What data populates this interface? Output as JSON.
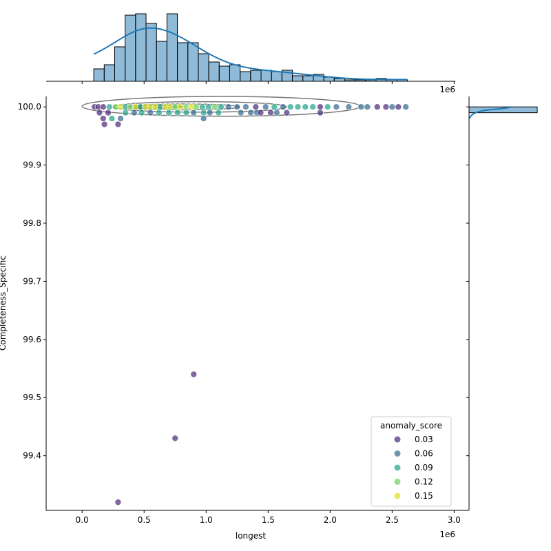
{
  "chart_data": {
    "type": "scatter",
    "xlabel": "longest",
    "ylabel": "Completeness_Specific",
    "x_offset_label": "1e6",
    "top_offset_label": "1e6",
    "xlim": [
      -0.29,
      3.12
    ],
    "ylim": [
      99.306,
      100.018
    ],
    "xticks": [
      0.0,
      0.5,
      1.0,
      1.5,
      2.0,
      2.5,
      3.0
    ],
    "xtick_labels": [
      "0.0",
      "0.5",
      "1.0",
      "1.5",
      "2.0",
      "2.5",
      "3.0"
    ],
    "yticks": [
      99.4,
      99.5,
      99.6,
      99.7,
      99.8,
      99.9,
      100.0
    ],
    "ytick_labels": [
      "99.4",
      "99.5",
      "99.6",
      "99.7",
      "99.8",
      "99.9",
      "100.0"
    ],
    "grid": false,
    "legend": {
      "title": "anomaly_score",
      "placement": "bottom-right",
      "entries": [
        {
          "label": "0.03",
          "color": "#482878"
        },
        {
          "label": "0.06",
          "color": "#31688e"
        },
        {
          "label": "0.09",
          "color": "#1fa187"
        },
        {
          "label": "0.12",
          "color": "#6ece58"
        },
        {
          "label": "0.15",
          "color": "#d8e219"
        }
      ]
    },
    "points": [
      [
        0.1,
        100.0,
        0.02
      ],
      [
        0.13,
        100.0,
        0.01
      ],
      [
        0.17,
        100.0,
        0.04
      ],
      [
        0.22,
        100.0,
        0.09
      ],
      [
        0.27,
        100.0,
        0.12
      ],
      [
        0.31,
        100.0,
        0.14
      ],
      [
        0.35,
        100.0,
        0.08
      ],
      [
        0.39,
        100.0,
        0.12
      ],
      [
        0.43,
        100.0,
        0.15
      ],
      [
        0.47,
        100.0,
        0.09
      ],
      [
        0.51,
        100.0,
        0.15
      ],
      [
        0.55,
        100.0,
        0.16
      ],
      [
        0.59,
        100.0,
        0.14
      ],
      [
        0.63,
        100.0,
        0.08
      ],
      [
        0.67,
        100.0,
        0.15
      ],
      [
        0.71,
        100.0,
        0.14
      ],
      [
        0.75,
        100.0,
        0.12
      ],
      [
        0.79,
        100.0,
        0.15
      ],
      [
        0.84,
        100.0,
        0.13
      ],
      [
        0.88,
        100.0,
        0.15
      ],
      [
        0.92,
        100.0,
        0.12
      ],
      [
        0.97,
        100.0,
        0.1
      ],
      [
        1.02,
        100.0,
        0.09
      ],
      [
        1.07,
        100.0,
        0.12
      ],
      [
        1.12,
        100.0,
        0.09
      ],
      [
        1.18,
        100.0,
        0.06
      ],
      [
        1.25,
        100.0,
        0.05
      ],
      [
        1.32,
        100.0,
        0.06
      ],
      [
        1.4,
        100.0,
        0.04
      ],
      [
        1.48,
        100.0,
        0.05
      ],
      [
        1.55,
        100.0,
        0.08
      ],
      [
        1.62,
        100.0,
        0.07
      ],
      [
        1.68,
        100.0,
        0.09
      ],
      [
        1.74,
        100.0,
        0.1
      ],
      [
        1.8,
        100.0,
        0.09
      ],
      [
        1.86,
        100.0,
        0.1
      ],
      [
        1.92,
        100.0,
        0.02
      ],
      [
        1.98,
        100.0,
        0.08
      ],
      [
        2.05,
        100.0,
        0.07
      ],
      [
        2.15,
        100.0,
        0.06
      ],
      [
        2.25,
        100.0,
        0.07
      ],
      [
        2.3,
        100.0,
        0.06
      ],
      [
        2.38,
        100.0,
        0.03
      ],
      [
        2.45,
        100.0,
        0.04
      ],
      [
        2.5,
        100.0,
        0.05
      ],
      [
        2.55,
        100.0,
        0.03
      ],
      [
        2.61,
        100.0,
        0.05
      ],
      [
        0.14,
        99.99,
        0.04
      ],
      [
        0.21,
        99.99,
        0.03
      ],
      [
        0.35,
        99.99,
        0.08
      ],
      [
        0.42,
        99.99,
        0.07
      ],
      [
        0.48,
        99.99,
        0.09
      ],
      [
        0.55,
        99.99,
        0.07
      ],
      [
        0.62,
        99.99,
        0.08
      ],
      [
        0.7,
        99.99,
        0.09
      ],
      [
        0.77,
        99.99,
        0.08
      ],
      [
        0.84,
        99.99,
        0.08
      ],
      [
        0.9,
        99.99,
        0.07
      ],
      [
        0.98,
        99.99,
        0.08
      ],
      [
        1.03,
        99.99,
        0.07
      ],
      [
        1.1,
        99.99,
        0.08
      ],
      [
        1.28,
        99.99,
        0.07
      ],
      [
        1.36,
        99.99,
        0.06
      ],
      [
        1.41,
        99.99,
        0.05
      ],
      [
        1.44,
        99.99,
        0.02
      ],
      [
        1.52,
        99.99,
        0.04
      ],
      [
        1.57,
        99.99,
        0.05
      ],
      [
        1.65,
        99.99,
        0.03
      ],
      [
        1.92,
        99.99,
        0.04
      ],
      [
        0.17,
        99.98,
        0.04
      ],
      [
        0.24,
        99.98,
        0.09
      ],
      [
        0.31,
        99.98,
        0.07
      ],
      [
        0.98,
        99.98,
        0.05
      ],
      [
        0.18,
        99.97,
        0.03
      ],
      [
        0.29,
        99.97,
        0.04
      ],
      [
        0.9,
        99.54,
        0.03
      ],
      [
        0.75,
        99.43,
        0.03
      ],
      [
        0.29,
        99.32,
        0.03
      ]
    ],
    "kde_contours": [
      {
        "cx": 1.12,
        "cy": 100.001,
        "rx": 1.12,
        "ry": 0.017
      },
      {
        "cx": 0.95,
        "cy": 100.0,
        "rx": 0.7,
        "ry": 0.009
      },
      {
        "cx": 0.82,
        "cy": 100.0,
        "rx": 0.45,
        "ry": 0.005
      },
      {
        "cx": 0.62,
        "cy": 100.0,
        "rx": 0.2,
        "ry": 0.002
      }
    ],
    "top_histogram": {
      "bin_start": 0.094,
      "bin_width": 0.0843,
      "counts": [
        9,
        12,
        25,
        48,
        49,
        42,
        29,
        49,
        28,
        28,
        20,
        14,
        11,
        12,
        7,
        8,
        8,
        7,
        8,
        4,
        4,
        5,
        3,
        2,
        1,
        1,
        1,
        2,
        1,
        1
      ],
      "color": "#1f77b4"
    },
    "right_histogram": {
      "bins": [
        [
          99.99,
          100.0,
          99
        ]
      ],
      "color": "#1f77b4"
    }
  }
}
